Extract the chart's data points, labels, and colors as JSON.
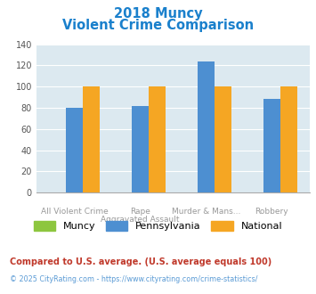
{
  "title_line1": "2018 Muncy",
  "title_line2": "Violent Crime Comparison",
  "cat_labels_line1": [
    "",
    "Rape",
    "Murder & Mans...",
    ""
  ],
  "cat_labels_line2": [
    "All Violent Crime",
    "Aggravated Assault",
    "",
    "Robbery"
  ],
  "muncy": [
    0,
    0,
    0,
    0
  ],
  "pennsylvania": [
    80,
    82,
    124,
    88
  ],
  "national": [
    100,
    100,
    100,
    100
  ],
  "color_muncy": "#8dc63f",
  "color_pa": "#4d8fd1",
  "color_national": "#f5a623",
  "ylim": [
    0,
    140
  ],
  "yticks": [
    0,
    20,
    40,
    60,
    80,
    100,
    120,
    140
  ],
  "bg_color": "#dce9f0",
  "title_color": "#1a80cc",
  "tick_color": "#555555",
  "legend_label_muncy": "Muncy",
  "legend_label_pa": "Pennsylvania",
  "legend_label_national": "National",
  "footnote1": "Compared to U.S. average. (U.S. average equals 100)",
  "footnote2": "© 2025 CityRating.com - https://www.cityrating.com/crime-statistics/",
  "footnote1_color": "#c0392b",
  "footnote2_color": "#5b9bd5"
}
